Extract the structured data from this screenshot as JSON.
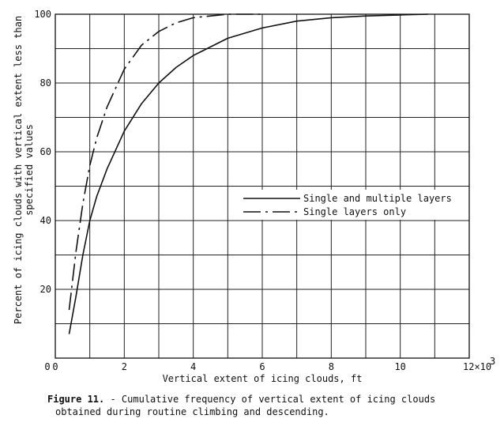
{
  "chart_data": {
    "type": "line",
    "title": "",
    "xlabel": "Vertical extent of icing clouds, ft",
    "ylabel_lines": [
      "Percent of icing clouds with vertical extent less than",
      "specified values"
    ],
    "xlim": [
      0,
      12
    ],
    "ylim": [
      0,
      100
    ],
    "x_ticks": [
      "0",
      "2",
      "4",
      "6",
      "8",
      "10"
    ],
    "x_end_tick": "12",
    "x_multiplier": "×10",
    "x_multiplier_exp": "3",
    "y_ticks": [
      "20",
      "40",
      "60",
      "80",
      "100"
    ],
    "grid": true,
    "legend_position": "center-right",
    "series": [
      {
        "name": "Single and multiple layers",
        "style": "solid",
        "x": [
          0.4,
          0.6,
          0.8,
          1.0,
          1.2,
          1.5,
          2.0,
          2.5,
          3.0,
          3.5,
          4.0,
          5.0,
          6.0,
          7.0,
          8.0,
          9.0,
          10.0,
          11.0
        ],
        "y": [
          7,
          18,
          30,
          40,
          47,
          55,
          66,
          74,
          80,
          84.5,
          88,
          93,
          96,
          98,
          99,
          99.5,
          99.8,
          100
        ]
      },
      {
        "name": "Single layers only",
        "style": "dash-dot",
        "x": [
          0.4,
          0.6,
          0.8,
          1.0,
          1.2,
          1.5,
          2.0,
          2.5,
          3.0,
          3.5,
          4.0,
          5.0,
          6.0
        ],
        "y": [
          14,
          31,
          45,
          56,
          64,
          73,
          84,
          91,
          95,
          97.5,
          99,
          100,
          100
        ]
      }
    ]
  },
  "caption": {
    "figure_label": "Figure 11.",
    "line1": " - Cumulative frequency of vertical extent of icing clouds",
    "line2": "obtained during routine climbing and descending."
  }
}
